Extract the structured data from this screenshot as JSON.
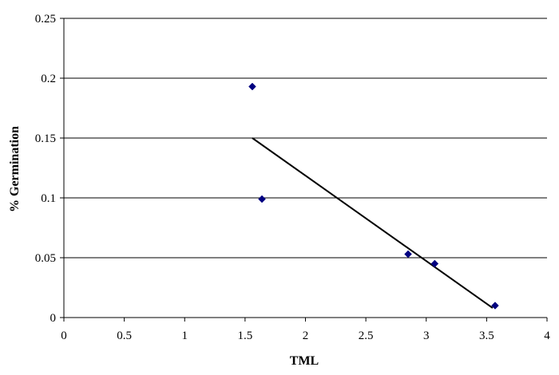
{
  "chart_data": {
    "type": "scatter",
    "title": "",
    "xlabel": "TML",
    "ylabel": "% Germination",
    "xlim": [
      0,
      4
    ],
    "ylim": [
      0,
      0.25
    ],
    "x_ticks": [
      0,
      0.5,
      1,
      1.5,
      2,
      2.5,
      3,
      3.5,
      4
    ],
    "x_tick_labels": [
      "0",
      "0.5",
      "1",
      "1.5",
      "2",
      "2.5",
      "3",
      "3.5",
      "4"
    ],
    "y_ticks": [
      0,
      0.05,
      0.1,
      0.15,
      0.2,
      0.25
    ],
    "y_tick_labels": [
      "0",
      "0.05",
      "0.1",
      "0.15",
      "0.2",
      "0.25"
    ],
    "grid": "horizontal",
    "legend": "none",
    "series": [
      {
        "marker": "diamond",
        "color": "#000080",
        "points": [
          {
            "x": 1.56,
            "y": 0.193
          },
          {
            "x": 1.64,
            "y": 0.099
          },
          {
            "x": 2.85,
            "y": 0.053
          },
          {
            "x": 3.07,
            "y": 0.045
          },
          {
            "x": 3.57,
            "y": 0.01
          }
        ]
      }
    ],
    "trendline": {
      "type": "linear",
      "color": "#000000",
      "x_start": 1.56,
      "y_start": 0.15,
      "x_end": 3.55,
      "y_end": 0.008
    }
  }
}
